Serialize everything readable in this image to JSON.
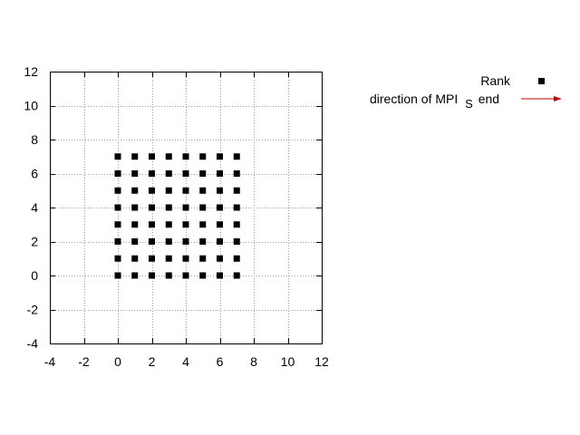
{
  "chart_data": {
    "type": "scatter",
    "title": "",
    "xlabel": "",
    "ylabel": "",
    "xlim": [
      -4,
      12
    ],
    "ylim": [
      -4,
      12
    ],
    "xticks": [
      -4,
      -2,
      0,
      2,
      4,
      6,
      8,
      10,
      12
    ],
    "yticks": [
      -4,
      -2,
      0,
      2,
      4,
      6,
      8,
      10,
      12
    ],
    "grid": true,
    "legend_position": "top-right outside",
    "series": [
      {
        "name": "Rank",
        "marker": "filled-square",
        "color": "#000000",
        "points": [
          [
            0,
            0
          ],
          [
            1,
            0
          ],
          [
            2,
            0
          ],
          [
            3,
            0
          ],
          [
            4,
            0
          ],
          [
            5,
            0
          ],
          [
            6,
            0
          ],
          [
            7,
            0
          ],
          [
            0,
            1
          ],
          [
            1,
            1
          ],
          [
            2,
            1
          ],
          [
            3,
            1
          ],
          [
            4,
            1
          ],
          [
            5,
            1
          ],
          [
            6,
            1
          ],
          [
            7,
            1
          ],
          [
            0,
            2
          ],
          [
            1,
            2
          ],
          [
            2,
            2
          ],
          [
            3,
            2
          ],
          [
            4,
            2
          ],
          [
            5,
            2
          ],
          [
            6,
            2
          ],
          [
            7,
            2
          ],
          [
            0,
            3
          ],
          [
            1,
            3
          ],
          [
            2,
            3
          ],
          [
            3,
            3
          ],
          [
            4,
            3
          ],
          [
            5,
            3
          ],
          [
            6,
            3
          ],
          [
            7,
            3
          ],
          [
            0,
            4
          ],
          [
            1,
            4
          ],
          [
            2,
            4
          ],
          [
            3,
            4
          ],
          [
            4,
            4
          ],
          [
            5,
            4
          ],
          [
            6,
            4
          ],
          [
            7,
            4
          ],
          [
            0,
            5
          ],
          [
            1,
            5
          ],
          [
            2,
            5
          ],
          [
            3,
            5
          ],
          [
            4,
            5
          ],
          [
            5,
            5
          ],
          [
            6,
            5
          ],
          [
            7,
            5
          ],
          [
            0,
            6
          ],
          [
            1,
            6
          ],
          [
            2,
            6
          ],
          [
            3,
            6
          ],
          [
            4,
            6
          ],
          [
            5,
            6
          ],
          [
            6,
            6
          ],
          [
            7,
            6
          ],
          [
            0,
            7
          ],
          [
            1,
            7
          ],
          [
            2,
            7
          ],
          [
            3,
            7
          ],
          [
            4,
            7
          ],
          [
            5,
            7
          ],
          [
            6,
            7
          ],
          [
            7,
            7
          ]
        ]
      },
      {
        "name_main": "direction of MPI",
        "name_sub": "S",
        "name_tail": "end",
        "marker": "arrow",
        "color": "#cc0000",
        "vectors": []
      }
    ]
  }
}
